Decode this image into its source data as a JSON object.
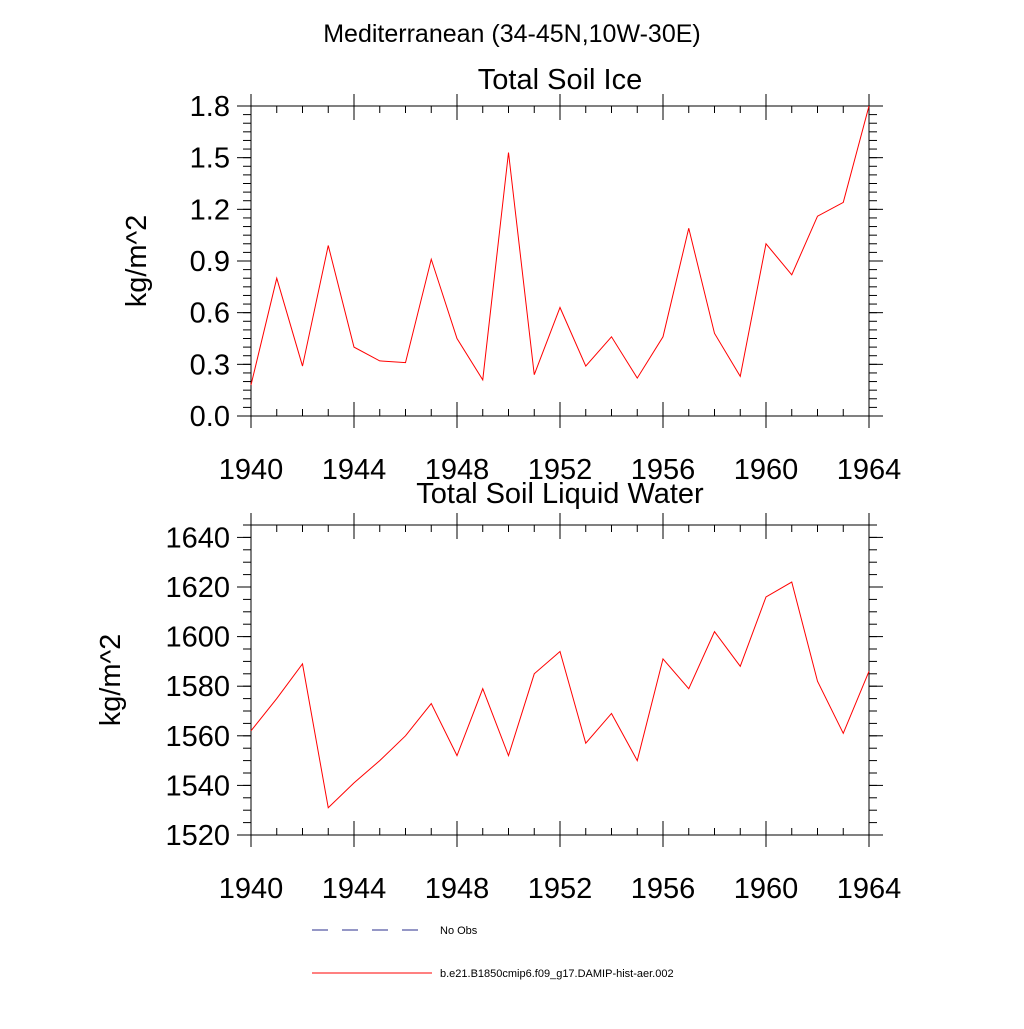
{
  "figure": {
    "title": "Mediterranean (34-45N,10W-30E)"
  },
  "legend": {
    "items": [
      {
        "label": "No Obs",
        "style": "dashed",
        "color": "#2b2f8c"
      },
      {
        "label": "b.e21.B1850cmip6.f09_g17.DAMIP-hist-aer.002",
        "style": "solid",
        "color": "#ff0000"
      }
    ]
  },
  "chart_data": [
    {
      "type": "line",
      "title": "Total Soil Ice",
      "xlabel": "",
      "ylabel": "kg/m^2",
      "xlim": [
        1940,
        1964
      ],
      "ylim": [
        0.0,
        1.8
      ],
      "xticks": [
        "1940",
        "1944",
        "1948",
        "1952",
        "1956",
        "1960",
        "1964"
      ],
      "yticks": [
        "0.0",
        "0.3",
        "0.6",
        "0.9",
        "1.2",
        "1.5",
        "1.8"
      ],
      "x": [
        1940,
        1941,
        1942,
        1943,
        1944,
        1945,
        1946,
        1947,
        1948,
        1949,
        1950,
        1951,
        1952,
        1953,
        1954,
        1955,
        1956,
        1957,
        1958,
        1959,
        1960,
        1961,
        1962,
        1963,
        1964
      ],
      "series": [
        {
          "color": "#ff0000",
          "values": [
            0.18,
            0.8,
            0.29,
            0.99,
            0.4,
            0.32,
            0.31,
            0.91,
            0.45,
            0.21,
            1.53,
            0.24,
            0.63,
            0.29,
            0.46,
            0.22,
            0.46,
            1.09,
            0.48,
            0.23,
            1.0,
            0.82,
            1.16,
            1.24,
            1.8
          ]
        }
      ]
    },
    {
      "type": "line",
      "title": "Total Soil Liquid Water",
      "xlabel": "",
      "ylabel": "kg/m^2",
      "xlim": [
        1940,
        1964
      ],
      "ylim": [
        1520,
        1645
      ],
      "xticks": [
        "1940",
        "1944",
        "1948",
        "1952",
        "1956",
        "1960",
        "1964"
      ],
      "yticks": [
        "1520",
        "1540",
        "1560",
        "1580",
        "1600",
        "1620",
        "1640"
      ],
      "x": [
        1940,
        1941,
        1942,
        1943,
        1944,
        1945,
        1946,
        1947,
        1948,
        1949,
        1950,
        1951,
        1952,
        1953,
        1954,
        1955,
        1956,
        1957,
        1958,
        1959,
        1960,
        1961,
        1962,
        1963,
        1964
      ],
      "series": [
        {
          "color": "#ff0000",
          "values": [
            1562,
            1575,
            1589,
            1531,
            1541,
            1550,
            1560,
            1573,
            1552,
            1579,
            1552,
            1585,
            1594,
            1557,
            1569,
            1550,
            1591,
            1579,
            1602,
            1588,
            1616,
            1622,
            1582,
            1561,
            1586
          ]
        }
      ]
    }
  ]
}
